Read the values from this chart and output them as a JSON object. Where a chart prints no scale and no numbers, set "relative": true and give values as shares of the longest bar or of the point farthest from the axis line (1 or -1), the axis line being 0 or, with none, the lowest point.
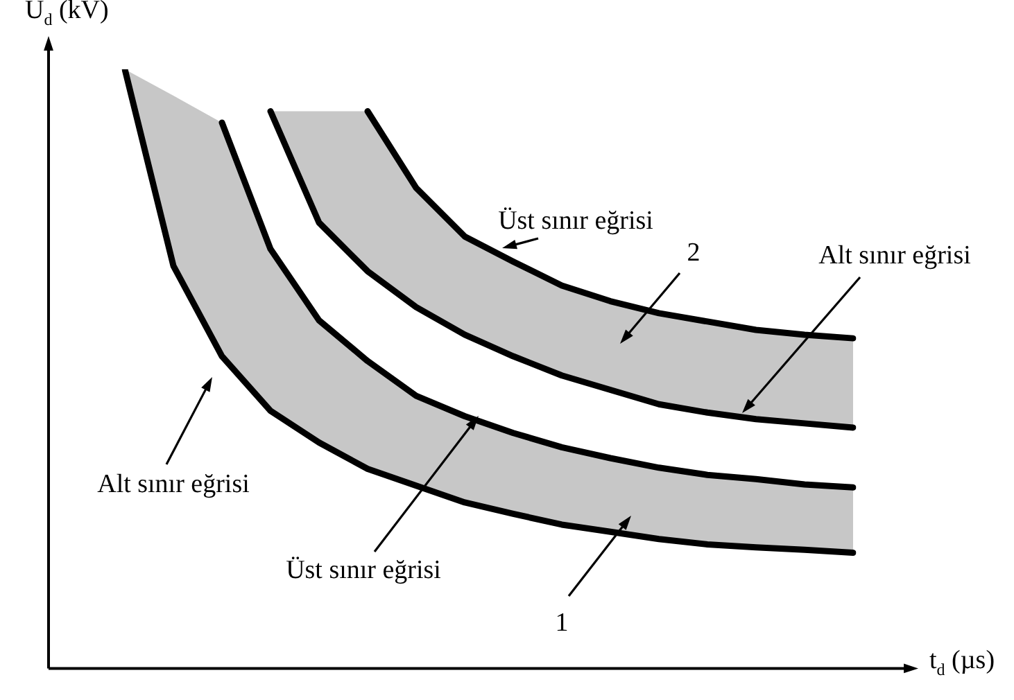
{
  "chart_data": {
    "type": "line",
    "relative": true,
    "xlabel": "t$_{d}$ (µs)",
    "ylabel": "U$_{d}$ (kV)",
    "categories": [
      null,
      null,
      null,
      null,
      null,
      null,
      null,
      null,
      null,
      null,
      null,
      null,
      null,
      null,
      null,
      null
    ],
    "legend": false,
    "grid": false,
    "marker": "none",
    "line_style": "solid",
    "series": [
      {
        "color": "#000000",
        "values": [
          1,
          0.672,
          0.521,
          0.43,
          0.377,
          0.333,
          0.305,
          0.277,
          0.258,
          0.24,
          0.228,
          0.216,
          0.207,
          0.202,
          0.198,
          0.193
        ]
      },
      {
        "color": "#000000",
        "values": [
          null,
          null,
          0.911,
          0.7,
          0.581,
          0.513,
          0.455,
          0.421,
          0.393,
          0.369,
          0.351,
          0.335,
          0.323,
          0.316,
          0.307,
          0.302
        ],
        "lower": [
          1,
          0.672,
          0.521,
          0.43,
          0.377,
          0.333,
          0.305,
          0.277,
          0.258,
          0.24,
          0.228,
          0.216,
          0.207,
          0.202,
          0.198,
          0.193
        ],
        "upper": [
          1,
          0.956,
          0.911,
          0.7,
          0.581,
          0.513,
          0.455,
          0.421,
          0.393,
          0.369,
          0.351,
          0.335,
          0.323,
          0.316,
          0.307,
          0.302
        ]
      },
      {
        "color": "#000000",
        "values": [
          null,
          null,
          null,
          0.93,
          0.744,
          0.663,
          0.603,
          0.557,
          0.521,
          0.489,
          0.465,
          0.441,
          0.427,
          0.416,
          0.409,
          0.402
        ]
      },
      {
        "color": "#000000",
        "values": [
          null,
          null,
          null,
          null,
          null,
          0.93,
          0.802,
          0.721,
          0.679,
          0.639,
          0.613,
          0.593,
          0.579,
          0.565,
          0.557,
          0.551
        ],
        "lower": [
          null,
          null,
          null,
          0.93,
          0.744,
          0.663,
          0.603,
          0.557,
          0.521,
          0.489,
          0.465,
          0.441,
          0.427,
          0.416,
          0.409,
          0.402
        ],
        "upper": [
          null,
          null,
          null,
          0.93,
          0.93,
          0.93,
          0.802,
          0.721,
          0.679,
          0.639,
          0.613,
          0.593,
          0.579,
          0.565,
          0.557,
          0.551
        ]
      }
    ],
    "annotations": [
      "Üst sınır eğrisi",
      "2",
      "Alt sınır eğrisi",
      "Alt sınır eğrisi",
      "Üst sınır eğrisi",
      "1"
    ]
  }
}
